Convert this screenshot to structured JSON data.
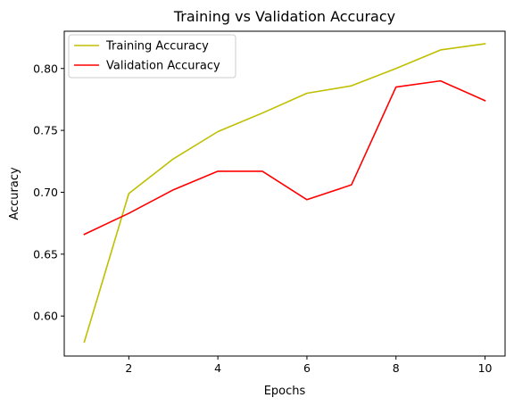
{
  "chart_data": {
    "type": "line",
    "title": "Training vs Validation Accuracy",
    "xlabel": "Epochs",
    "ylabel": "Accuracy",
    "xlim": [
      0.55,
      10.45
    ],
    "ylim": [
      0.5677,
      0.8301
    ],
    "xticks": [
      2,
      4,
      6,
      8,
      10
    ],
    "yticks": [
      0.6,
      0.65,
      0.7,
      0.75,
      0.8
    ],
    "ytick_labels": [
      "0.60",
      "0.65",
      "0.70",
      "0.75",
      "0.80"
    ],
    "grid": false,
    "legend_position": "upper-left",
    "x": [
      1,
      2,
      3,
      4,
      5,
      6,
      7,
      8,
      9,
      10
    ],
    "series": [
      {
        "name": "Training Accuracy",
        "color": "#bfbf00",
        "values": [
          0.579,
          0.699,
          0.727,
          0.749,
          0.764,
          0.78,
          0.786,
          0.8,
          0.815,
          0.82
        ]
      },
      {
        "name": "Validation Accuracy",
        "color": "#ff0000",
        "values": [
          0.666,
          0.683,
          0.702,
          0.717,
          0.717,
          0.694,
          0.706,
          0.785,
          0.79,
          0.774
        ]
      }
    ]
  }
}
